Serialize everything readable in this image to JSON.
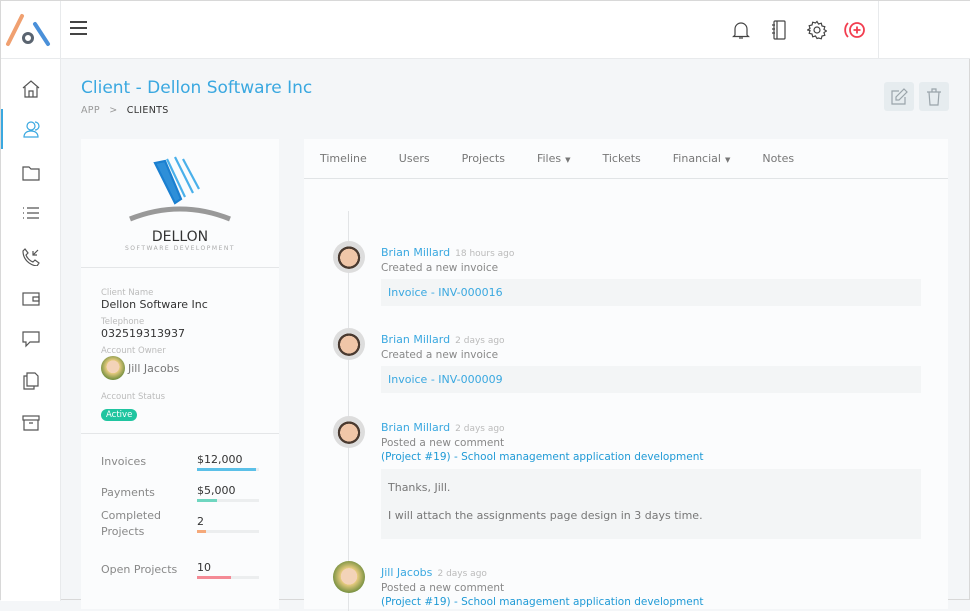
{
  "header": {
    "icons": [
      "bell-icon",
      "notebook-icon",
      "gear-icon",
      "add-circle-icon"
    ],
    "accent": "#3aa8e0",
    "danger": "#f23d4f"
  },
  "sidebar": {
    "items": [
      "home-icon",
      "users-icon",
      "folder-icon",
      "list-icon",
      "phone-icon",
      "wallet-icon",
      "chat-icon",
      "documents-icon",
      "archive-icon"
    ],
    "active": 1
  },
  "page": {
    "title": "Client - Dellon Software Inc",
    "breadcrumb": [
      "APP",
      "CLIENTS"
    ]
  },
  "client": {
    "logo_name": "DELLON",
    "logo_tagline": "SOFTWARE DEVELOPMENT",
    "fields": {
      "name_label": "Client Name",
      "name": "Dellon Software Inc",
      "telephone_label": "Telephone",
      "telephone": "032519313937",
      "owner_label": "Account Owner",
      "owner": "Jill Jacobs",
      "status_label": "Account Status",
      "status": "Active"
    },
    "stats": [
      {
        "label": "Invoices",
        "value": "$12,000",
        "progress": 95,
        "color": "#5bc0e8"
      },
      {
        "label": "Payments",
        "value": "$5,000",
        "progress": 33,
        "color": "#6fd6c0"
      },
      {
        "label": "Completed Projects",
        "value": "2",
        "progress": 14,
        "color": "#f5a97a"
      },
      {
        "label": "Open Projects",
        "value": "10",
        "progress": 55,
        "color": "#f48a95"
      }
    ]
  },
  "tabs": [
    {
      "label": "Timeline"
    },
    {
      "label": "Users"
    },
    {
      "label": "Projects"
    },
    {
      "label": "Files",
      "dropdown": true
    },
    {
      "label": "Tickets"
    },
    {
      "label": "Financial",
      "dropdown": true
    },
    {
      "label": "Notes"
    }
  ],
  "timeline": [
    {
      "user": "Brian Millard",
      "time": "18 hours ago",
      "action": "Created a new invoice",
      "box": "Invoice - INV-000016"
    },
    {
      "user": "Brian Millard",
      "time": "2 days ago",
      "action": "Created a new invoice",
      "box": "Invoice - INV-000009"
    },
    {
      "user": "Brian Millard",
      "time": "2 days ago",
      "action": "Posted a new comment",
      "link": "(Project #19) - School management application development",
      "comment": [
        "Thanks, Jill.",
        "I will attach the assignments page design in 3 days time."
      ]
    },
    {
      "user": "Jill Jacobs",
      "time": "2 days ago",
      "action": "Posted a new comment",
      "link": "(Project #19) - School management application development"
    }
  ]
}
